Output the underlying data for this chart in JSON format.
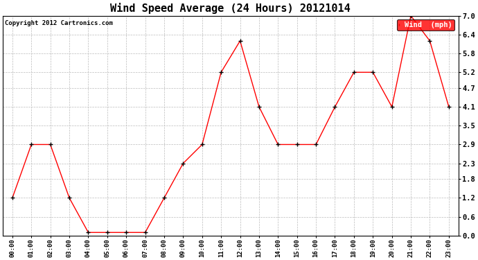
{
  "title": "Wind Speed Average (24 Hours) 20121014",
  "copyright": "Copyright 2012 Cartronics.com",
  "legend_label": "Wind  (mph)",
  "x_labels": [
    "00:00",
    "01:00",
    "02:00",
    "03:00",
    "04:00",
    "05:00",
    "06:00",
    "07:00",
    "08:00",
    "09:00",
    "10:00",
    "11:00",
    "12:00",
    "13:00",
    "14:00",
    "15:00",
    "16:00",
    "17:00",
    "18:00",
    "19:00",
    "20:00",
    "21:00",
    "22:00",
    "23:00"
  ],
  "y_values": [
    1.2,
    2.9,
    2.9,
    1.2,
    0.1,
    0.1,
    0.1,
    0.1,
    1.2,
    2.3,
    2.9,
    5.2,
    6.2,
    4.1,
    2.9,
    2.9,
    2.9,
    4.1,
    5.2,
    5.2,
    4.1,
    7.0,
    6.2,
    4.1
  ],
  "ylim": [
    0.0,
    7.0
  ],
  "yticks": [
    0.0,
    0.6,
    1.2,
    1.8,
    2.3,
    2.9,
    3.5,
    4.1,
    4.7,
    5.2,
    5.8,
    6.4,
    7.0
  ],
  "line_color": "red",
  "marker": "+",
  "marker_color": "black",
  "bg_color": "white",
  "grid_color": "#bbbbbb",
  "title_fontsize": 11,
  "legend_bg": "red",
  "legend_text_color": "white"
}
